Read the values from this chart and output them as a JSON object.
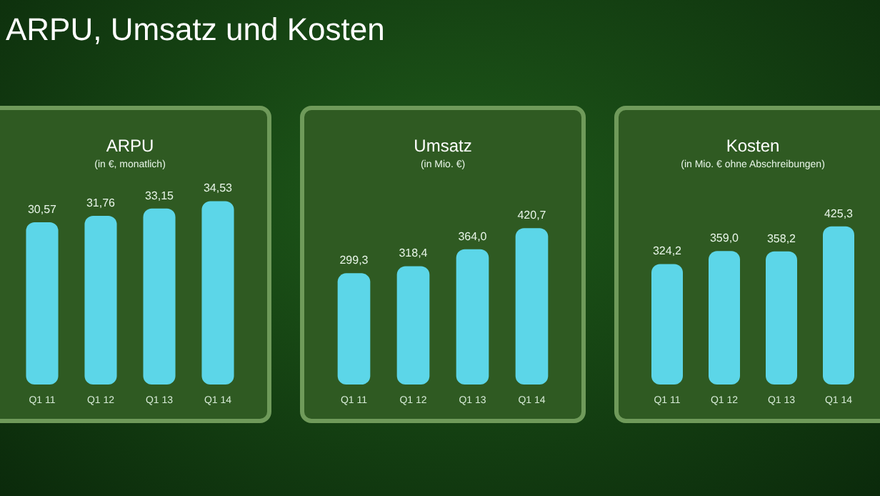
{
  "chart_data": [
    {
      "type": "other",
      "title": "ARPU, Umsatz und Kosten"
    },
    {
      "type": "bar",
      "title": "ARPU",
      "subtitle": "(in €, monatlich)",
      "categories": [
        "Q1 11",
        "Q1 12",
        "Q1 13",
        "Q1 14"
      ],
      "values": [
        30.57,
        31.76,
        33.15,
        34.53
      ],
      "value_labels": [
        "30,57",
        "31,76",
        "33,15",
        "34,53"
      ],
      "color": "#5cd6e8"
    },
    {
      "type": "bar",
      "title": "Umsatz",
      "subtitle": "(in Mio. €)",
      "categories": [
        "Q1 11",
        "Q1 12",
        "Q1 13",
        "Q1 14"
      ],
      "values": [
        299.3,
        318.4,
        364.0,
        420.7
      ],
      "value_labels": [
        "299,3",
        "318,4",
        "364,0",
        "420,7"
      ],
      "color": "#5cd6e8"
    },
    {
      "type": "bar",
      "title": "Kosten",
      "subtitle": "(in Mio. € ohne Abschreibungen)",
      "categories": [
        "Q1 11",
        "Q1 12",
        "Q1 13",
        "Q1 14"
      ],
      "values": [
        324.2,
        359.0,
        358.2,
        425.3
      ],
      "value_labels": [
        "324,2",
        "359,0",
        "358,2",
        "425,3"
      ],
      "color": "#5cd6e8"
    }
  ]
}
